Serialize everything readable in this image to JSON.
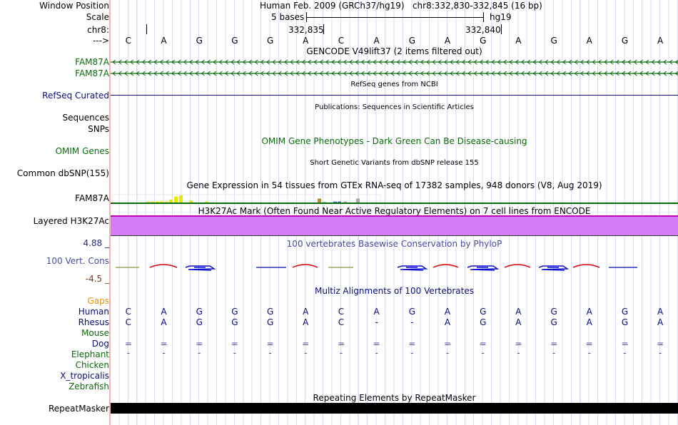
{
  "labels": {
    "window_position": "Window Position",
    "scale": "Scale",
    "chrom": "chr8:",
    "strand": "--->",
    "gencode1": "FAM87A",
    "gencode2": "FAM87A",
    "refseq": "RefSeq Curated",
    "sequences": "Sequences",
    "snps": "SNPs",
    "omim": "OMIM Genes",
    "dbsnp": "Common dbSNP(155)",
    "gtex": "FAM87A",
    "h3k27ac": "Layered H3K27Ac",
    "phylop_max": "4.88 _",
    "phylop": "100 Vert. Cons",
    "phylop_min": "-4.5 _",
    "gaps": "Gaps",
    "human": "Human",
    "rhesus": "Rhesus",
    "mouse": "Mouse",
    "dog": "Dog",
    "elephant": "Elephant",
    "chicken": "Chicken",
    "xtrop": "X_tropicalis",
    "zebrafish": "Zebrafish",
    "repeatmasker": "RepeatMasker"
  },
  "header": {
    "assembly": "Human Feb. 2009 (GRCh37/hg19)   chr8:332,830-332,845 (16 bp)",
    "scale_text": "5 bases",
    "scale_db": "hg19",
    "pos1": "332,835",
    "pos2": "332,840"
  },
  "titles": {
    "gencode": "GENCODE V49lift37 (2 items filtered out)",
    "refseq": "RefSeq genes from NCBI",
    "pubs": "Publications: Sequences in Scientific Articles",
    "omim": "OMIM Gene Phenotypes - Dark Green Can Be Disease-causing",
    "dbsnp": "Short Genetic Variants from dbSNP release 155",
    "gtex": "Gene Expression in 54 tissues from GTEx RNA-seq of 17382 samples, 948 donors (V8, Aug 2019)",
    "h3k27ac": "H3K27Ac Mark (Often Found Near Active Regulatory Elements) on 7 cell lines from ENCODE",
    "phylop": "100 vertebrates Basewise Conservation by PhyloP",
    "multiz": "Multiz Alignments of 100 Vertebrates",
    "rmsk": "Repeating Elements by RepeatMasker"
  },
  "sequence": [
    "C",
    "A",
    "G",
    "G",
    "G",
    "A",
    "C",
    "A",
    "G",
    "A",
    "G",
    "A",
    "G",
    "A",
    "G",
    "A"
  ],
  "multiz": {
    "human": [
      "C",
      "A",
      "G",
      "G",
      "G",
      "A",
      "C",
      "A",
      "G",
      "A",
      "G",
      "A",
      "G",
      "A",
      "G",
      "A"
    ],
    "rhesus": [
      "C",
      "A",
      "G",
      "G",
      "G",
      "A",
      "C",
      "-",
      "-",
      "A",
      "G",
      "A",
      "G",
      "A",
      "G",
      "A"
    ],
    "dog": [
      "=",
      "=",
      "=",
      "=",
      "=",
      "=",
      "=",
      "=",
      "=",
      "=",
      "=",
      "=",
      "=",
      "=",
      "=",
      "="
    ],
    "elephant": [
      "-",
      "-",
      "-",
      "-",
      "-",
      "-",
      "-",
      "-",
      "-",
      "-",
      "-",
      "-",
      "-",
      "-",
      "-",
      "-"
    ]
  },
  "colors": {
    "gene": "#0a6b0a",
    "navy": "#0c0c78",
    "purple": "#d27cf5",
    "magenta": "#c000c0",
    "phylop_label": "#4a4aa0",
    "gaps": "#e69500"
  }
}
